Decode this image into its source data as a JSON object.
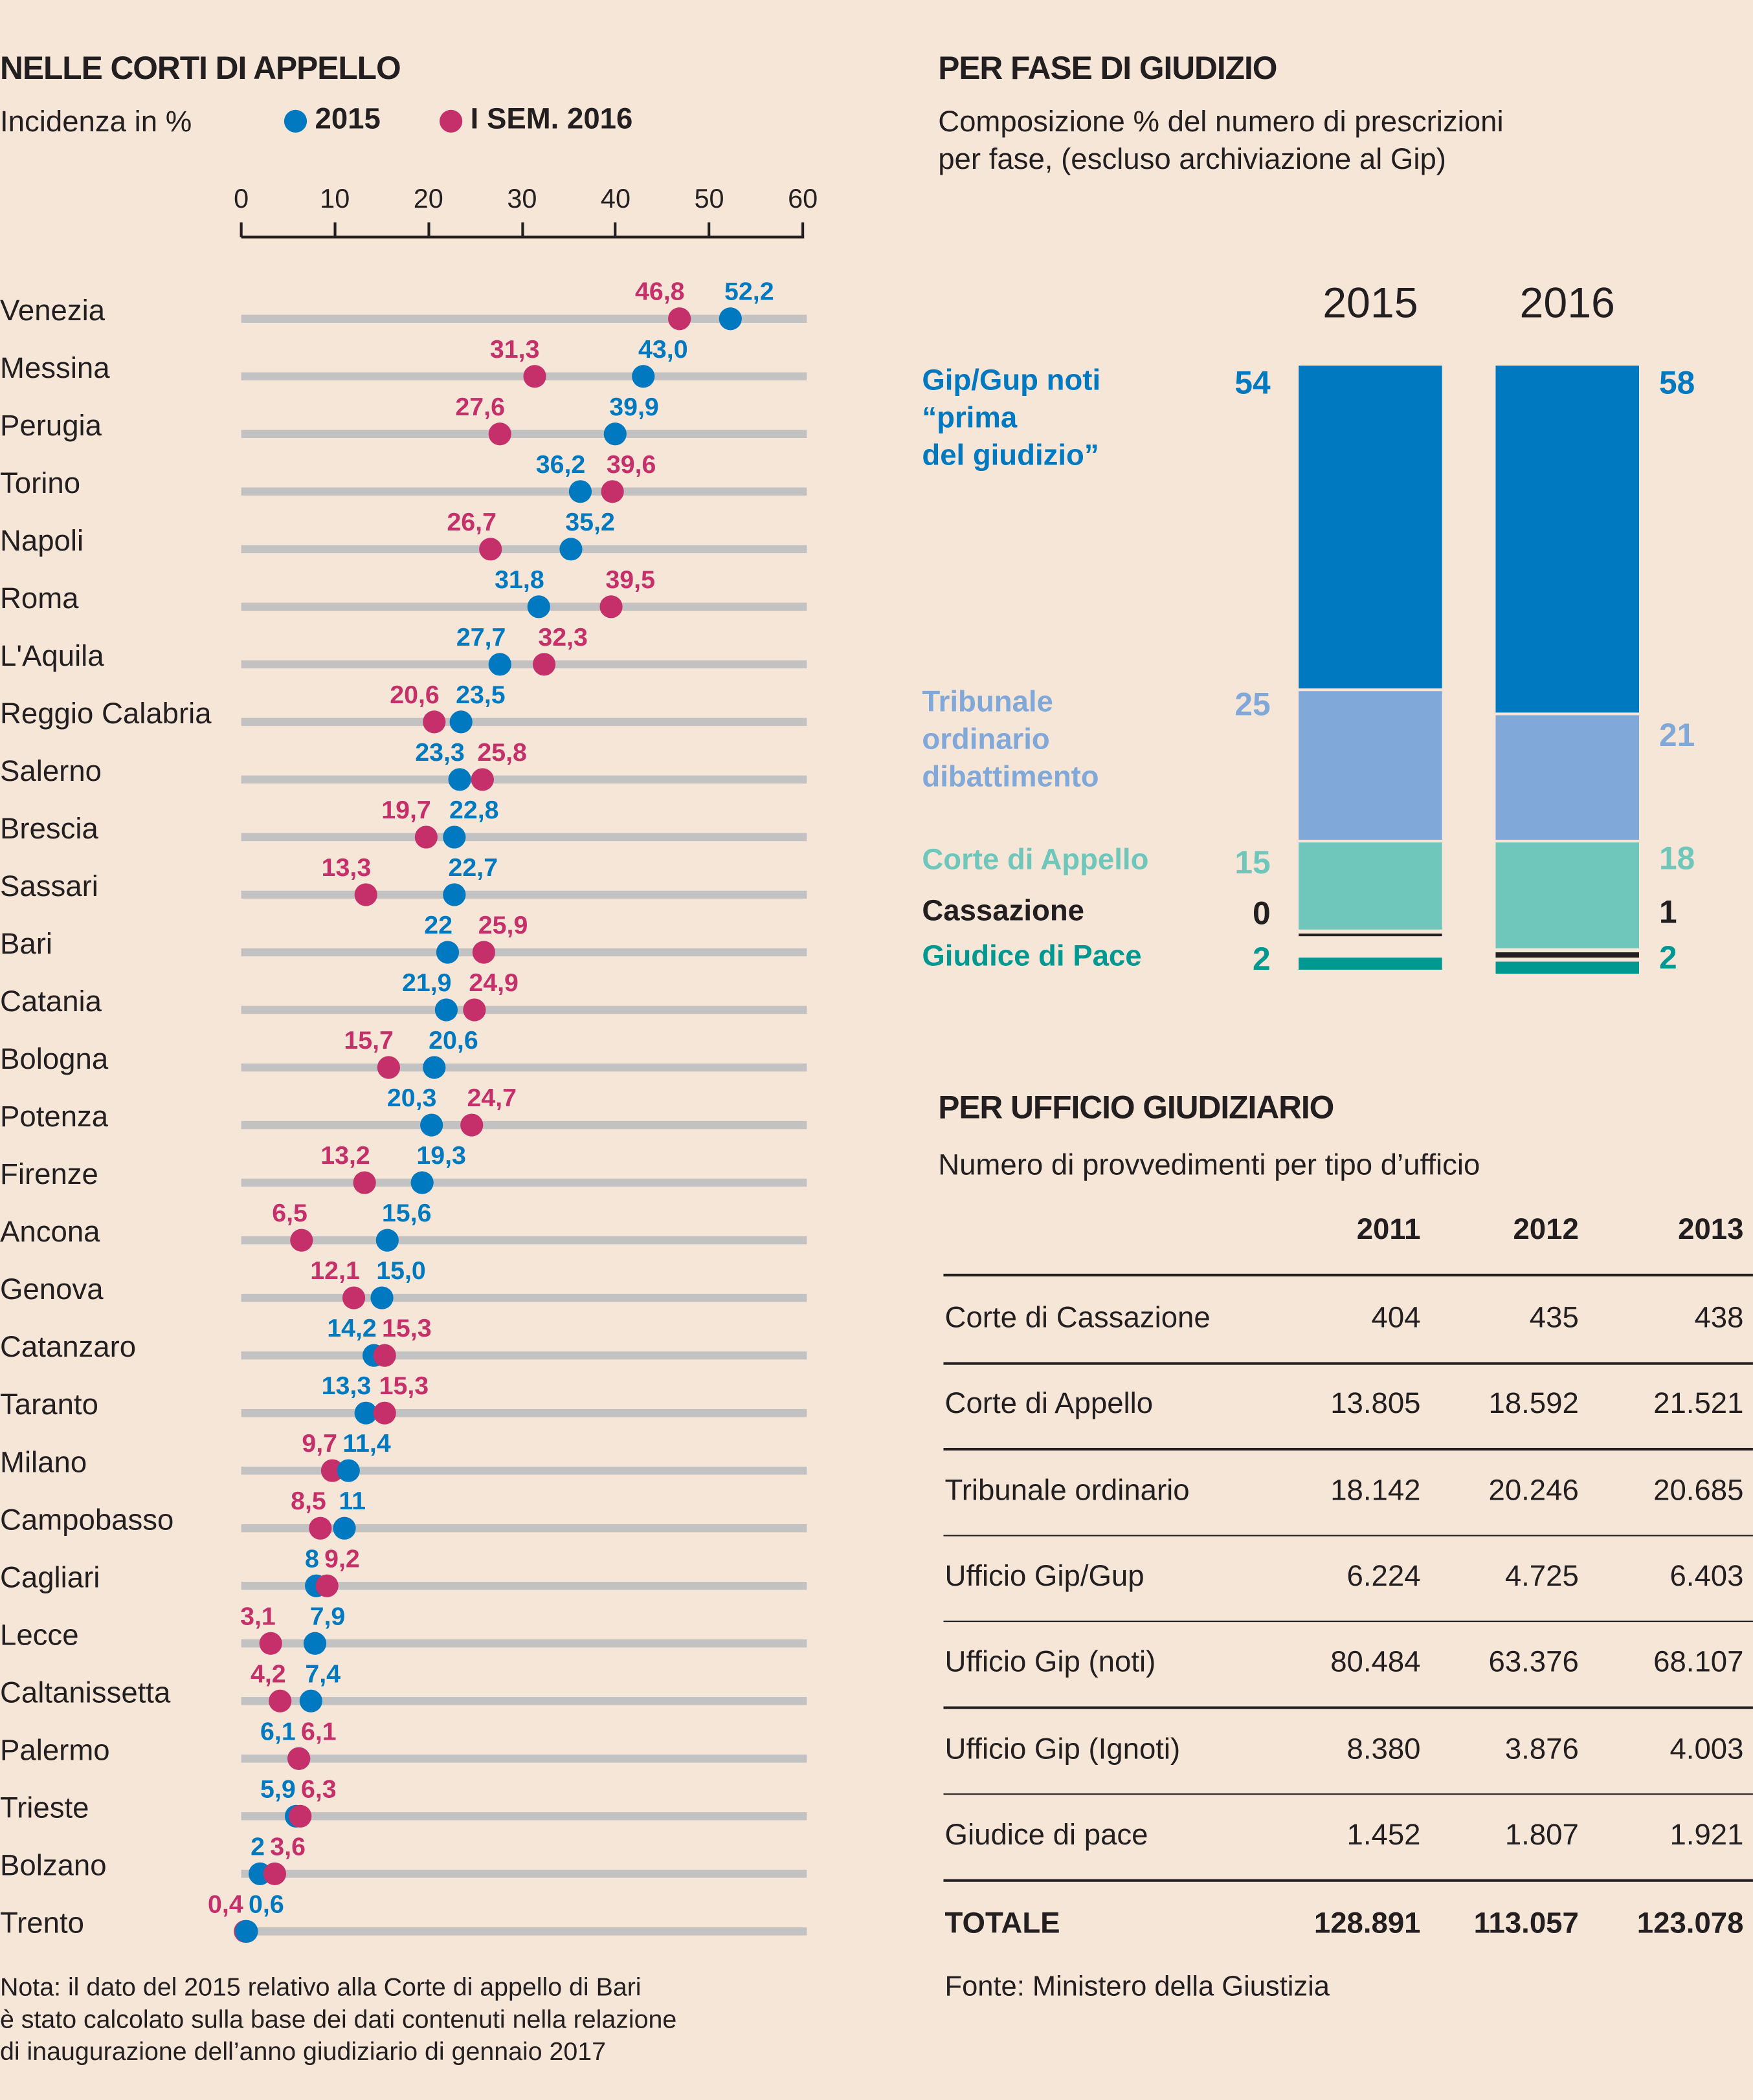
{
  "colors": {
    "blue": "#0079c1",
    "magenta": "#c5306b",
    "track": "#c2c2c2",
    "gip": "#0079c1",
    "tribunale": "#80a8d9",
    "appello": "#6fc7bc",
    "cassazione": "#231f20",
    "pace": "#009891"
  },
  "left": {
    "title": "NELLE CORTI DI APPELLO",
    "subtitle": "Incidenza in %",
    "legend": [
      "2015",
      "I SEM. 2016"
    ],
    "note": [
      "Nota: il dato del 2015 relativo alla Corte di appello di Bari",
      "è stato calcolato sulla base dei dati contenuti nella relazione",
      "di inaugurazione dell’anno  giudiziario di gennaio 2017"
    ]
  },
  "chart_data": [
    {
      "type": "dumbbell",
      "title": "NELLE CORTI DI APPELLO",
      "xlabel": "Incidenza in %",
      "xlim": [
        0,
        60
      ],
      "xticks": [
        "0",
        "10",
        "20",
        "30",
        "40",
        "50",
        "60"
      ],
      "series": [
        {
          "name": "2015"
        },
        {
          "name": "I SEM. 2016"
        }
      ],
      "rows": [
        {
          "city": "Venezia",
          "v2015": 52.2,
          "v2016": 46.8,
          "l2015": "52,2",
          "l2016": "46,8"
        },
        {
          "city": "Messina",
          "v2015": 43.0,
          "v2016": 31.3,
          "l2015": "43,0",
          "l2016": "31,3"
        },
        {
          "city": "Perugia",
          "v2015": 39.9,
          "v2016": 27.6,
          "l2015": "39,9",
          "l2016": "27,6"
        },
        {
          "city": "Torino",
          "v2015": 36.2,
          "v2016": 39.6,
          "l2015": "36,2",
          "l2016": "39,6"
        },
        {
          "city": "Napoli",
          "v2015": 35.2,
          "v2016": 26.7,
          "l2015": "35,2",
          "l2016": "26,7"
        },
        {
          "city": "Roma",
          "v2015": 31.8,
          "v2016": 39.5,
          "l2015": "31,8",
          "l2016": "39,5"
        },
        {
          "city": "L'Aquila",
          "v2015": 27.7,
          "v2016": 32.3,
          "l2015": "27,7",
          "l2016": "32,3"
        },
        {
          "city": "Reggio Calabria",
          "v2015": 23.5,
          "v2016": 20.6,
          "l2015": "23,5",
          "l2016": "20,6"
        },
        {
          "city": "Salerno",
          "v2015": 23.3,
          "v2016": 25.8,
          "l2015": "23,3",
          "l2016": "25,8"
        },
        {
          "city": "Brescia",
          "v2015": 22.8,
          "v2016": 19.7,
          "l2015": "22,8",
          "l2016": "19,7"
        },
        {
          "city": "Sassari",
          "v2015": 22.7,
          "v2016": 13.3,
          "l2015": "22,7",
          "l2016": "13,3"
        },
        {
          "city": "Bari",
          "v2015": 22,
          "v2016": 25.9,
          "l2015": "22",
          "l2016": "25,9"
        },
        {
          "city": "Catania",
          "v2015": 21.9,
          "v2016": 24.9,
          "l2015": "21,9",
          "l2016": "24,9"
        },
        {
          "city": "Bologna",
          "v2015": 20.6,
          "v2016": 15.7,
          "l2015": "20,6",
          "l2016": "15,7"
        },
        {
          "city": "Potenza",
          "v2015": 20.3,
          "v2016": 24.7,
          "l2015": "20,3",
          "l2016": "24,7"
        },
        {
          "city": "Firenze",
          "v2015": 19.3,
          "v2016": 13.2,
          "l2015": "19,3",
          "l2016": "13,2"
        },
        {
          "city": "Ancona",
          "v2015": 15.6,
          "v2016": 6.5,
          "l2015": "15,6",
          "l2016": "6,5"
        },
        {
          "city": "Genova",
          "v2015": 15.0,
          "v2016": 12.1,
          "l2015": "15,0",
          "l2016": "12,1"
        },
        {
          "city": "Catanzaro",
          "v2015": 14.2,
          "v2016": 15.3,
          "l2015": "14,2",
          "l2016": "15,3"
        },
        {
          "city": "Taranto",
          "v2015": 13.3,
          "v2016": 15.3,
          "l2015": "13,3",
          "l2016": "15,3"
        },
        {
          "city": "Milano",
          "v2015": 11.4,
          "v2016": 9.7,
          "l2015": "11,4",
          "l2016": "9,7"
        },
        {
          "city": "Campobasso",
          "v2015": 11,
          "v2016": 8.5,
          "l2015": "11",
          "l2016": "8,5"
        },
        {
          "city": "Cagliari",
          "v2015": 8,
          "v2016": 9.2,
          "l2015": "8",
          "l2016": "9,2"
        },
        {
          "city": "Lecce",
          "v2015": 7.9,
          "v2016": 3.1,
          "l2015": "7,9",
          "l2016": "3,1"
        },
        {
          "city": "Caltanissetta",
          "v2015": 7.4,
          "v2016": 4.2,
          "l2015": "7,4",
          "l2016": "4,2"
        },
        {
          "city": "Palermo",
          "v2015": 6.1,
          "v2016": 6.1,
          "l2015": "6,1",
          "l2016": "6,1"
        },
        {
          "city": "Trieste",
          "v2015": 5.9,
          "v2016": 6.3,
          "l2015": "5,9",
          "l2016": "6,3"
        },
        {
          "city": "Bolzano",
          "v2015": 2,
          "v2016": 3.6,
          "l2015": "2",
          "l2016": "3,6"
        },
        {
          "city": "Trento",
          "v2015": 0.6,
          "v2016": 0.4,
          "l2015": "0,6",
          "l2016": "0,4"
        }
      ]
    },
    {
      "type": "stacked_bar",
      "title": "PER FASE DI GIUDIZIO",
      "subtitle": [
        "Composizione % del numero di prescrizioni",
        "per fase, (escluso archiviazione al Gip)"
      ],
      "categories": [
        "2015",
        "2016"
      ],
      "series": [
        {
          "name": "Gip/Gup noti “prima del giudizio”",
          "lines": [
            "Gip/Gup noti",
            "“prima",
            "del giudizio”"
          ],
          "key": "gip",
          "values": [
            54,
            58
          ]
        },
        {
          "name": "Tribunale ordinario dibattimento",
          "lines": [
            "Tribunale",
            "ordinario",
            "dibattimento"
          ],
          "key": "tribunale",
          "values": [
            25,
            21
          ]
        },
        {
          "name": "Corte di Appello",
          "lines": [
            "Corte di Appello"
          ],
          "key": "appello",
          "values": [
            15,
            18
          ]
        },
        {
          "name": "Cassazione",
          "lines": [
            "Cassazione"
          ],
          "key": "cassazione",
          "values": [
            0,
            1
          ]
        },
        {
          "name": "Giudice di Pace",
          "lines": [
            "Giudice di Pace"
          ],
          "key": "pace",
          "values": [
            2,
            2
          ]
        }
      ]
    },
    {
      "type": "table",
      "title": "PER UFFICIO GIUDIZIARIO",
      "subtitle": "Numero di provvedimenti per tipo d’ufficio",
      "columns": [
        "2011",
        "2012",
        "2013"
      ],
      "rows": [
        [
          "Corte di Cassazione",
          "404",
          "435",
          "438"
        ],
        [
          "Corte di Appello",
          "13.805",
          "18.592",
          "21.521"
        ],
        [
          "Tribunale ordinario",
          "18.142",
          "20.246",
          "20.685"
        ],
        [
          "Ufficio Gip/Gup",
          "6.224",
          "4.725",
          "6.403"
        ],
        [
          "Ufficio Gip (noti)",
          "80.484",
          "63.376",
          "68.107"
        ],
        [
          "Ufficio Gip (Ignoti)",
          "8.380",
          "3.876",
          "4.003"
        ],
        [
          "Giudice di pace",
          "1.452",
          "1.807",
          "1.921"
        ]
      ],
      "total": [
        "TOTALE",
        "128.891",
        "113.057",
        "123.078"
      ],
      "source": "Fonte: Ministero della Giustizia"
    }
  ]
}
